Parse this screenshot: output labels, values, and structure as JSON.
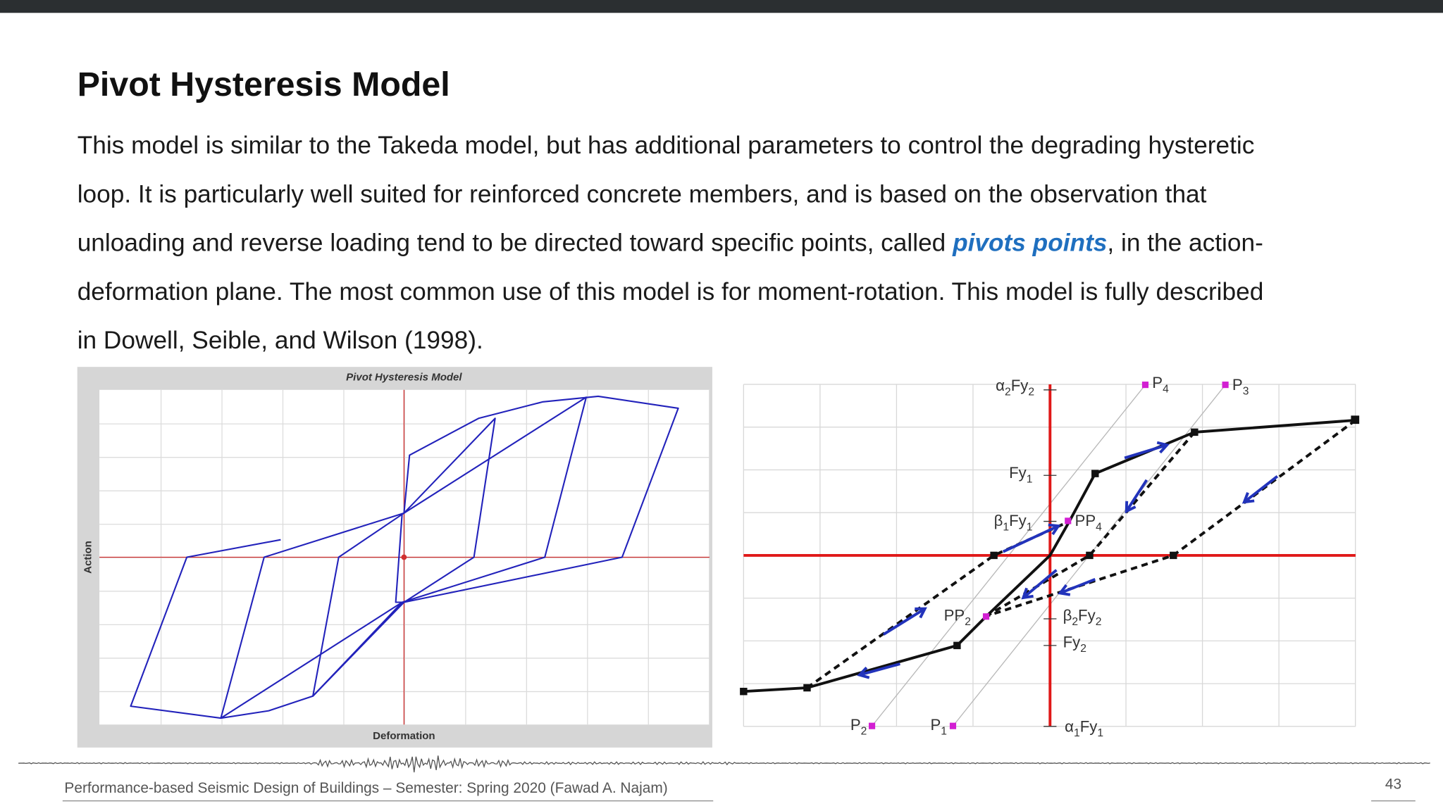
{
  "slide": {
    "title": "Pivot Hysteresis Model",
    "paragraph": {
      "lines": [
        [
          "This model is similar to the Takeda model, but has additional parameters to control the degrading hysteretic"
        ],
        [
          "loop. It is particularly well suited for reinforced concrete members, and is based on the observation that"
        ],
        [
          "unloading and reverse loading tend to be directed toward specific points, called ",
          "pivots points",
          ", in the action-"
        ],
        [
          "deformation plane. The most common use of this model is for moment-rotation. This model is fully described"
        ],
        [
          "in Dowell, Seible, and Wilson (1998)."
        ]
      ]
    },
    "left_figure": {
      "title": "Pivot Hysteresis Model",
      "y_label": "Action",
      "x_label": "Deformation"
    },
    "right_figure": {
      "labels": [
        [
          "α",
          "2",
          "Fy",
          "2"
        ],
        [
          "P",
          "4"
        ],
        [
          "P",
          "3"
        ],
        [
          "Fy",
          "1"
        ],
        [
          "β",
          "1",
          "Fy",
          "1"
        ],
        [
          "PP",
          "4"
        ],
        [
          "PP",
          "2"
        ],
        [
          "β",
          "2",
          "Fy",
          "2"
        ],
        [
          "Fy",
          "2"
        ],
        [
          "P",
          "2"
        ],
        [
          "P",
          "1"
        ],
        [
          "α",
          "1",
          "Fy",
          "1"
        ]
      ]
    },
    "footer": {
      "text": "Performance-based Seismic Design of Buildings – Semester: Spring 2020 (Fawad A. Najam)",
      "page": "43"
    }
  }
}
